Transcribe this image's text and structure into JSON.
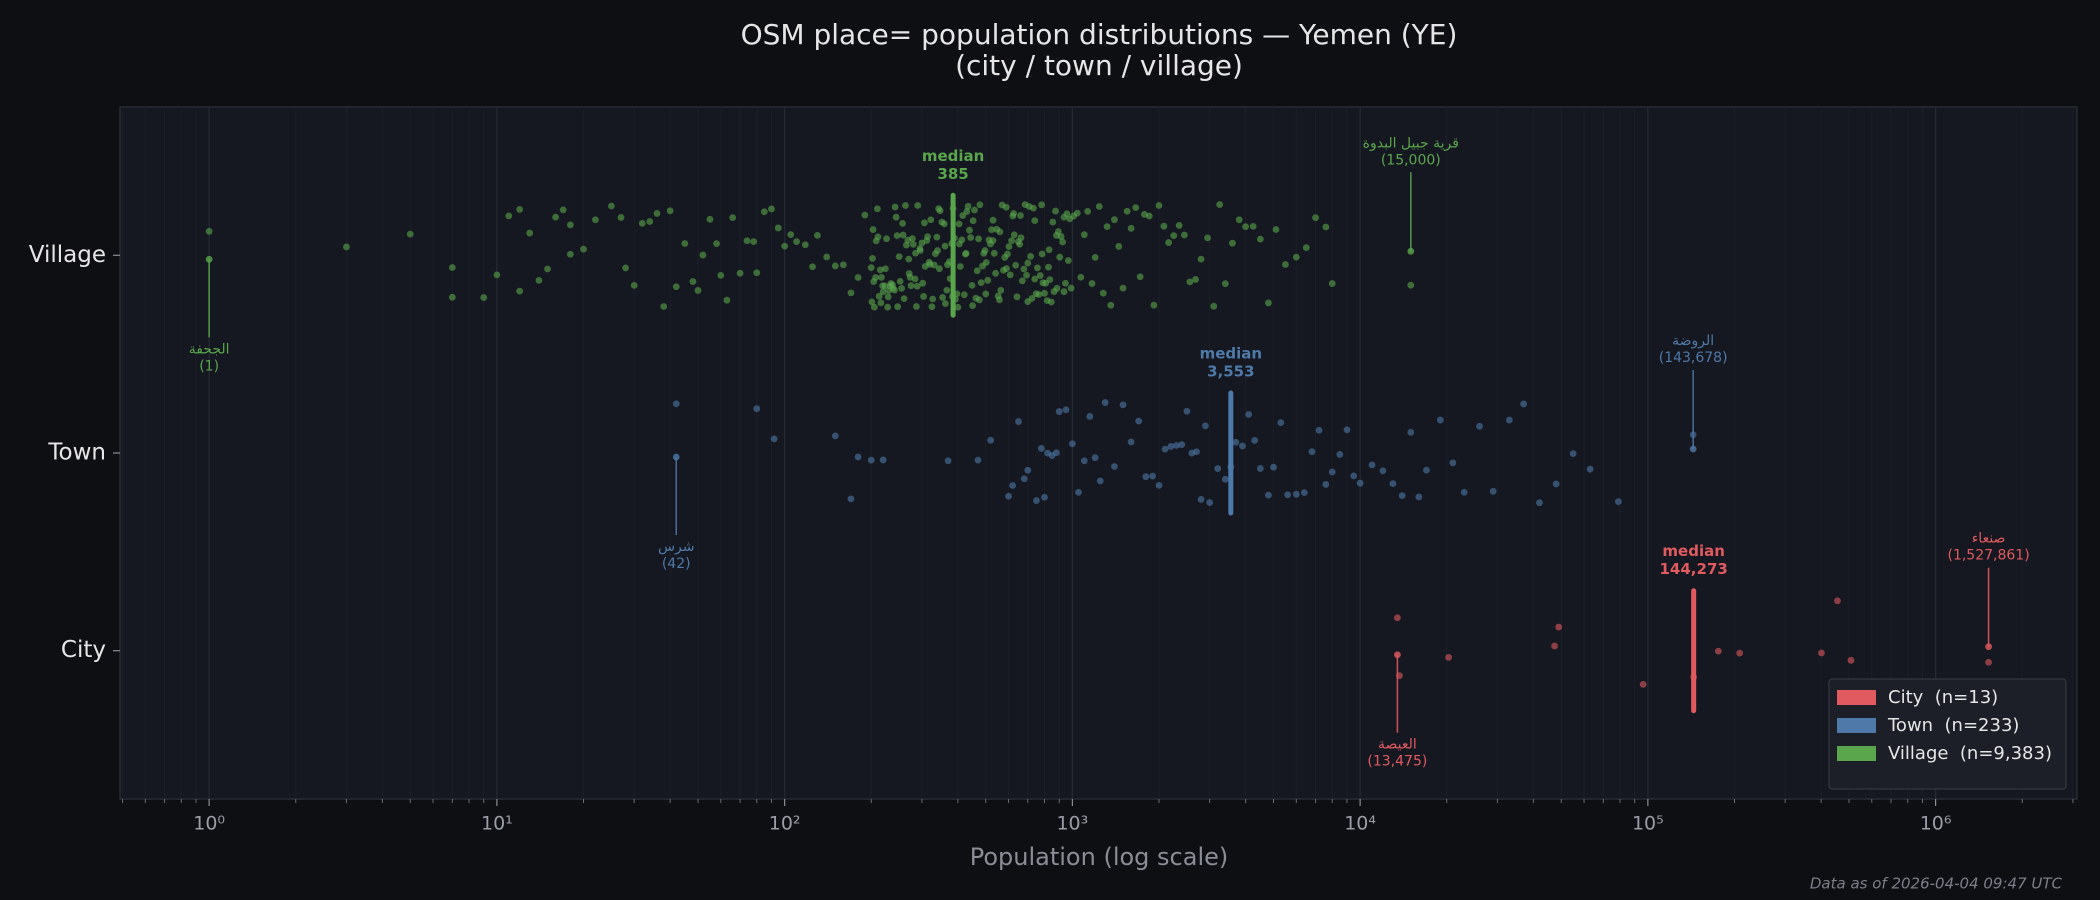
{
  "chart_data": {
    "type": "strip",
    "title": "OSM place= population distributions — Yemen (YE)",
    "subtitle": "(city / town / village)",
    "x_label": "Population (log scale)",
    "footnote": "Data as of 2026-04-04 09:47 UTC",
    "x_scale": "log",
    "grid": true,
    "legend_position": "lower right",
    "median_caption": "median",
    "xlim": [
      0.49,
      3100000
    ],
    "xticks": [
      {
        "value": 1,
        "label": "10⁰"
      },
      {
        "value": 10,
        "label": "10¹"
      },
      {
        "value": 100,
        "label": "10²"
      },
      {
        "value": 1000,
        "label": "10³"
      },
      {
        "value": 10000,
        "label": "10⁴"
      },
      {
        "value": 100000,
        "label": "10⁵"
      },
      {
        "value": 1000000,
        "label": "10⁶"
      }
    ],
    "ylim": [
      -0.75,
      2.75
    ],
    "categories": [
      "City",
      "Town",
      "Village"
    ],
    "series": [
      {
        "name": "City  (n=13)",
        "color": "#e05a5f",
        "values": [
          13475,
          13700,
          20300,
          47400,
          49000,
          96300,
          144273,
          175800,
          208400,
          401000,
          456000,
          508000,
          1527861
        ],
        "median": 144273,
        "median_label": "144,273",
        "annotations": [
          {
            "text": "العيصة",
            "value": 13475,
            "value_label": "(13,475)"
          },
          {
            "text": "صنعاء",
            "value": 1527861,
            "value_label": "(1,527,861)"
          }
        ]
      },
      {
        "name": "Town  (n=233)",
        "color": "#4f79a8",
        "values": [
          42,
          80,
          92,
          150,
          170,
          180,
          200,
          220,
          370,
          470,
          520,
          600,
          620,
          650,
          680,
          700,
          750,
          780,
          800,
          820,
          850,
          880,
          900,
          950,
          1000,
          1050,
          1100,
          1150,
          1200,
          1250,
          1300,
          1400,
          1500,
          1600,
          1700,
          1800,
          1900,
          2000,
          2100,
          2200,
          2300,
          2400,
          2500,
          2600,
          2700,
          2800,
          2900,
          3000,
          3200,
          3400,
          3553,
          3700,
          3900,
          4100,
          4300,
          4500,
          4800,
          5000,
          5300,
          5600,
          6000,
          6400,
          6800,
          7200,
          7600,
          8000,
          8500,
          9000,
          9500,
          10000,
          11000,
          12000,
          13000,
          14000,
          15000,
          16000,
          17000,
          19000,
          21000,
          23000,
          26000,
          29000,
          33000,
          37000,
          42000,
          48000,
          55000,
          63000,
          79000,
          143678
        ],
        "median": 3553,
        "median_label": "3,553",
        "annotations": [
          {
            "text": "شرس",
            "value": 42,
            "value_label": "(42)"
          },
          {
            "text": "الروضة",
            "value": 143678,
            "value_label": "(143,678)"
          }
        ]
      },
      {
        "name": "Village  (n=9,383)",
        "color": "#5aa64c",
        "values": [
          1,
          3,
          5,
          7,
          7,
          9,
          10,
          11,
          12,
          12,
          13,
          14,
          15,
          16,
          17,
          18,
          18,
          20,
          22,
          25,
          27,
          28,
          30,
          32,
          34,
          36,
          38,
          40,
          42,
          45,
          48,
          50,
          52,
          55,
          58,
          60,
          63,
          66,
          70,
          74,
          78,
          80,
          85,
          90,
          95,
          100,
          105,
          110,
          118,
          125,
          130,
          140,
          150,
          160,
          170,
          180,
          190,
          200,
          202,
          205,
          208,
          210,
          213,
          216,
          220,
          223,
          226,
          230,
          234,
          238,
          242,
          246,
          250,
          255,
          260,
          265,
          270,
          275,
          280,
          285,
          290,
          296,
          302,
          308,
          314,
          320,
          327,
          334,
          340,
          347,
          354,
          361,
          368,
          376,
          385,
          392,
          400,
          408,
          416,
          425,
          434,
          443,
          452,
          462,
          472,
          482,
          492,
          502,
          513,
          524,
          535,
          546,
          558,
          570,
          582,
          595,
          608,
          621,
          635,
          649,
          663,
          678,
          693,
          708,
          724,
          740,
          756,
          773,
          790,
          808,
          826,
          845,
          864,
          884,
          904,
          925,
          946,
          968,
          990,
          201,
          204,
          207,
          211,
          215,
          219,
          224,
          229,
          233,
          237,
          241,
          247,
          252,
          258,
          263,
          268,
          273,
          278,
          284,
          289,
          295,
          300,
          306,
          312,
          318,
          325,
          331,
          338,
          345,
          352,
          359,
          366,
          374,
          381,
          389,
          397,
          405,
          413,
          421,
          430,
          439,
          448,
          457,
          467,
          477,
          487,
          497,
          508,
          519,
          530,
          541,
          552,
          564,
          576,
          589,
          602,
          615,
          628,
          642,
          656,
          670,
          685,
          700,
          716,
          732,
          748,
          765,
          782,
          800,
          817,
          835,
          855,
          874,
          894,
          914,
          935,
          957,
          979,
          203,
          217,
          228,
          244,
          257,
          271,
          287,
          304,
          322,
          343,
          362,
          383,
          404,
          427,
          450,
          475,
          500,
          530,
          560,
          590,
          625,
          660,
          700,
          740,
          785,
          830,
          880,
          935,
          1010,
          1040,
          1070,
          1100,
          1130,
          1170,
          1200,
          1240,
          1280,
          1320,
          1360,
          1400,
          1450,
          1500,
          1550,
          1600,
          1660,
          1720,
          1780,
          1850,
          1920,
          2000,
          2080,
          2160,
          2250,
          2350,
          2450,
          2560,
          2680,
          2800,
          2950,
          3100,
          3250,
          3400,
          3600,
          3800,
          4000,
          4250,
          4500,
          4800,
          5100,
          5500,
          6000,
          6500,
          7000,
          7600,
          8000,
          15000
        ],
        "median": 385,
        "median_label": "385",
        "annotations": [
          {
            "text": "الجحفة",
            "value": 1,
            "value_label": "(1)"
          },
          {
            "text": "قرية جبيل البدوة",
            "value": 15000,
            "value_label": "(15,000)"
          }
        ]
      }
    ]
  }
}
